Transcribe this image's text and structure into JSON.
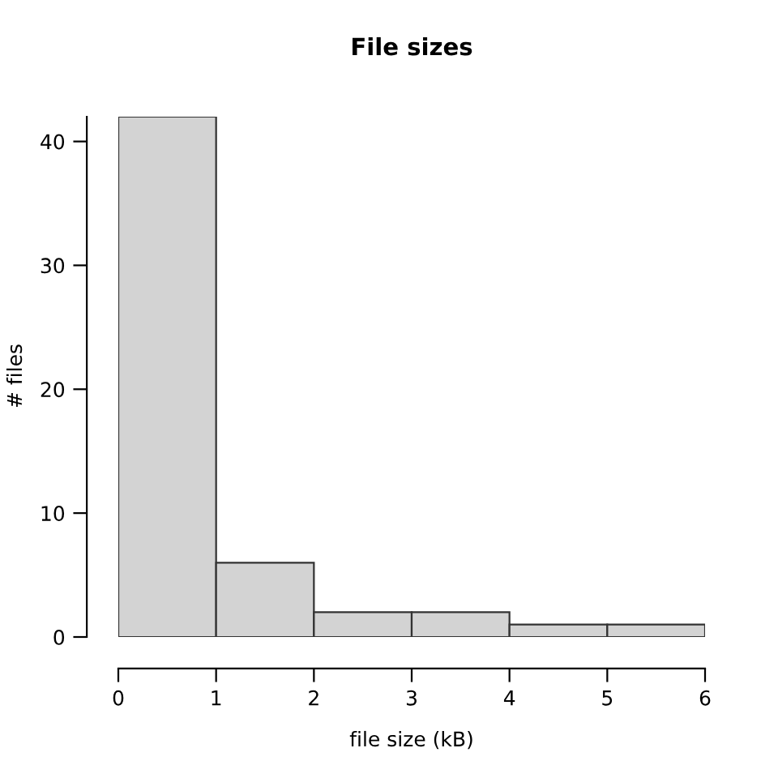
{
  "chart_data": {
    "type": "histogram",
    "title": "File sizes",
    "xlabel": "file size (kB)",
    "ylabel": "# files",
    "bins": [
      0,
      1,
      2,
      3,
      4,
      5,
      6
    ],
    "values": [
      42,
      6,
      2,
      2,
      1,
      1
    ],
    "color": "#d3d3d3",
    "xlim": [
      0,
      6
    ],
    "ylim": [
      0,
      42
    ],
    "xticks": [
      0,
      1,
      2,
      3,
      4,
      5,
      6
    ],
    "yticks": [
      0,
      10,
      20,
      30,
      40
    ],
    "grid": false
  }
}
